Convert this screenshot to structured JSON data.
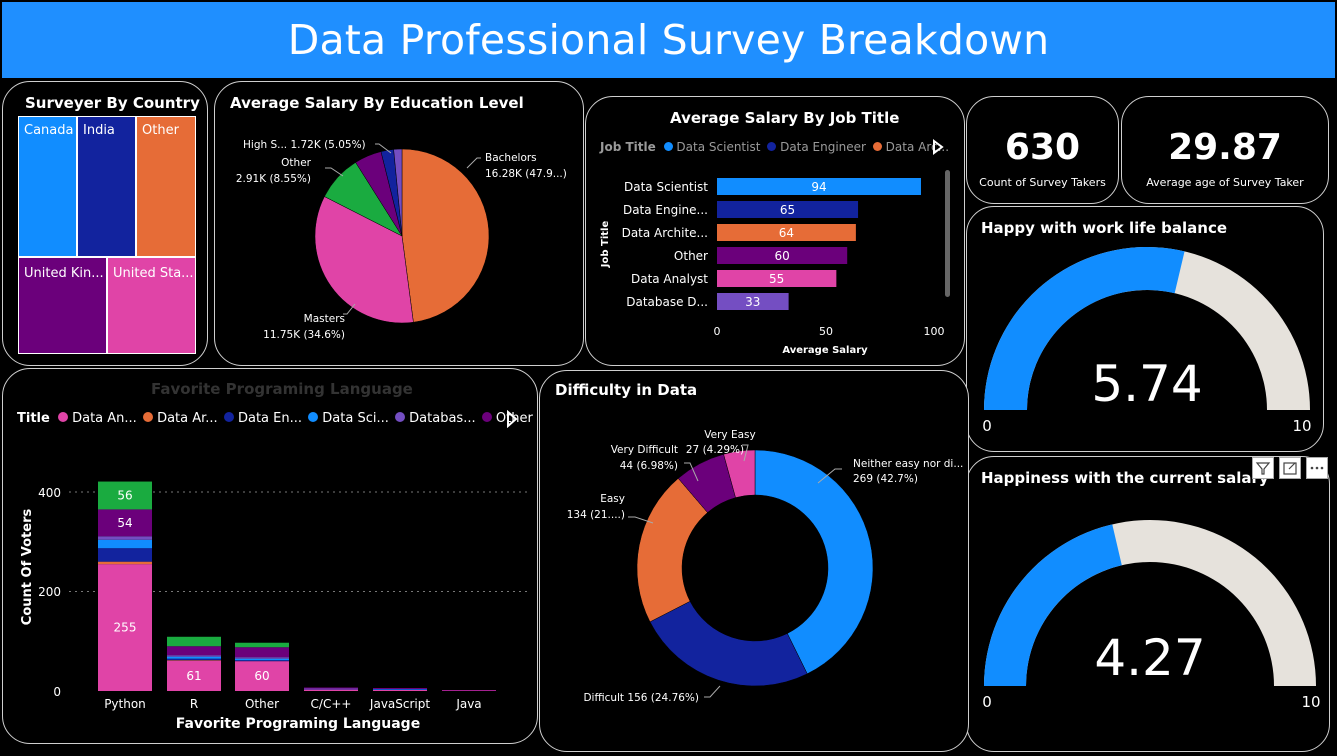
{
  "title": "Data Professional Survey Breakdown",
  "colors": {
    "blue": "#118dff",
    "navy": "#12239e",
    "orange": "#e66c37",
    "purple": "#6b007b",
    "pink": "#e044a7",
    "green": "#1aab40",
    "dark_purple": "#744ec2",
    "gauge_bg": "#e6e2dc"
  },
  "country_panel": {
    "title": "Surveyer By Country",
    "tiles": [
      {
        "label": "Canada",
        "color": "#118dff"
      },
      {
        "label": "India",
        "color": "#12239e"
      },
      {
        "label": "Other",
        "color": "#e66c37"
      },
      {
        "label": "United Kin...",
        "color": "#6b007b"
      },
      {
        "label": "United Sta...",
        "color": "#e044a7"
      }
    ]
  },
  "education_panel": {
    "title": "Average Salary By Education Level",
    "labels": {
      "high_school": "High S... 1.72K (5.05%)",
      "other_1": "Other",
      "other_2": "2.91K (8.55%)",
      "bachelors_1": "Bachelors",
      "bachelors_2": "16.28K (47.9...)",
      "masters_1": "Masters",
      "masters_2": "11.75K (34.6%)"
    }
  },
  "jobtitle_panel": {
    "title": "Average Salary By Job Title",
    "legend_title": "Job Title",
    "legend": [
      "Data Scientist",
      "Data Engineer",
      "Data Arc..."
    ],
    "yaxis_label": "Job Title",
    "xaxis_label": "Average Salary",
    "ticks": [
      "0",
      "50",
      "100"
    ]
  },
  "kpis": {
    "count_value": "630",
    "count_label": "Count of Survey Takers",
    "age_value": "29.87",
    "age_label": "Average age of Survey Taker"
  },
  "gauge_worklife": {
    "title": "Happy with work life balance",
    "value": "5.74",
    "value_num": 5.74,
    "min": "0",
    "max": "10"
  },
  "gauge_salary": {
    "title": "Happiness with the current salary",
    "value": "4.27",
    "value_num": 4.27,
    "min": "0",
    "max": "10"
  },
  "language_panel": {
    "title": "Favorite Programing Language",
    "legend_title": "Title",
    "legend": [
      "Data An...",
      "Data Ar...",
      "Data En...",
      "Data Sci...",
      "Databas...",
      "Other"
    ],
    "xaxis_label": "Favorite Programing Language",
    "yaxis_label": "Count Of Voters",
    "ticks": [
      "0",
      "200",
      "400"
    ]
  },
  "difficulty_panel": {
    "title": "Difficulty in Data",
    "labels": {
      "very_easy_1": "Very Easy",
      "very_easy_2": "27 (4.29%)",
      "very_difficult_1": "Very Difficult",
      "very_difficult_2": "44 (6.98%)",
      "easy_1": "Easy",
      "easy_2": "134 (21....)",
      "neither_1": "Neither easy nor di...",
      "neither_2": "269 (42.7%)",
      "difficult": "Difficult 156 (24.76%)"
    }
  },
  "chart_data": [
    {
      "type": "treemap",
      "title": "Surveyer By Country",
      "categories": [
        "United Sta...",
        "Other",
        "India",
        "United Kin...",
        "Canada"
      ]
    },
    {
      "type": "pie",
      "title": "Average Salary By Education Level",
      "categories": [
        "Bachelors",
        "Masters",
        "Other",
        "High S...",
        "(unlabeled 1)",
        "(unlabeled 2)"
      ],
      "values": [
        16.28,
        11.75,
        2.91,
        1.72,
        0.8,
        0.52
      ],
      "colors": [
        "#e66c37",
        "#e044a7",
        "#1aab40",
        "#6b007b",
        "#12239e",
        "#744ec2"
      ]
    },
    {
      "type": "bar",
      "title": "Average Salary By Job Title",
      "orientation": "horizontal",
      "categories": [
        "Data Scientist",
        "Data Engine...",
        "Data Archite...",
        "Other",
        "Data Analyst",
        "Database D..."
      ],
      "values": [
        94,
        65,
        64,
        60,
        55,
        33
      ],
      "colors": [
        "#118dff",
        "#12239e",
        "#e66c37",
        "#6b007b",
        "#e044a7",
        "#744ec2"
      ],
      "xlabel": "Average Salary",
      "ylabel": "Job Title",
      "xlim": [
        0,
        100
      ]
    },
    {
      "type": "bar",
      "stacked": true,
      "title": "Favorite Programing Language",
      "categories": [
        "Python",
        "R",
        "Other",
        "C/C++",
        "JavaScript",
        "Java"
      ],
      "series": [
        {
          "name": "Data An...",
          "color": "#e044a7",
          "values": [
            255,
            61,
            60,
            3,
            2,
            1
          ]
        },
        {
          "name": "Data Ar...",
          "color": "#e66c37",
          "values": [
            5,
            1,
            0,
            0,
            0,
            0
          ]
        },
        {
          "name": "Data En...",
          "color": "#12239e",
          "values": [
            27,
            3,
            2,
            1,
            1,
            0
          ]
        },
        {
          "name": "Data Sci...",
          "color": "#118dff",
          "values": [
            17,
            4,
            3,
            0,
            1,
            0
          ]
        },
        {
          "name": "Databas...",
          "color": "#744ec2",
          "values": [
            7,
            3,
            3,
            1,
            0,
            0
          ]
        },
        {
          "name": "Other",
          "color": "#6b007b",
          "values": [
            54,
            18,
            20,
            2,
            2,
            1
          ]
        },
        {
          "name": "(green)",
          "color": "#1aab40",
          "values": [
            56,
            19,
            9,
            0,
            0,
            0
          ]
        }
      ],
      "data_labels": {
        "Python": [
          "255",
          "54",
          "56"
        ],
        "R": [
          "61"
        ],
        "Other": [
          "60"
        ]
      },
      "xlabel": "Favorite Programing Language",
      "ylabel": "Count Of Voters",
      "ylim": [
        0,
        440
      ]
    },
    {
      "type": "donut",
      "title": "Difficulty in Data",
      "categories": [
        "Neither easy nor di...",
        "Difficult",
        "Easy",
        "Very Difficult",
        "Very Easy"
      ],
      "values": [
        269,
        156,
        134,
        44,
        27
      ],
      "colors": [
        "#118dff",
        "#12239e",
        "#e66c37",
        "#6b007b",
        "#e044a7"
      ]
    },
    {
      "type": "gauge",
      "title": "Happy with work life balance",
      "value": 5.74,
      "min": 0,
      "max": 10
    },
    {
      "type": "gauge",
      "title": "Happiness with the current salary",
      "value": 4.27,
      "min": 0,
      "max": 10
    }
  ]
}
